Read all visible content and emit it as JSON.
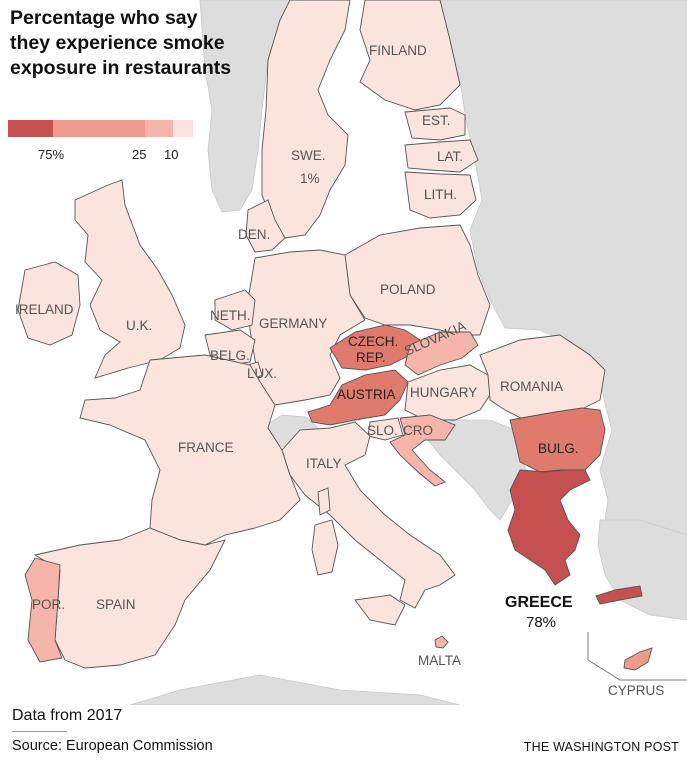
{
  "title": "Percentage who say they experience smoke exposure in restaurants",
  "legend": {
    "colors": [
      "#c6504f",
      "#ee9b8c",
      "#f5b5aa",
      "#fbe3de"
    ],
    "labels": [
      "75%",
      "25",
      "10"
    ]
  },
  "colors": {
    "land_other": "#dddddd",
    "sea": "#ffffff",
    "level_1": "#fbe3de",
    "level_2": "#f5b5aa",
    "level_3": "#ee9b8c",
    "level_4": "#e07a6c",
    "level_5": "#c6504f"
  },
  "countries": {
    "finland": "FINLAND",
    "sweden": "SWE.",
    "sweden_value": "1%",
    "estonia": "EST.",
    "latvia": "LAT.",
    "lithuania": "LITH.",
    "denmark": "DEN.",
    "ireland": "IRELAND",
    "uk": "U.K.",
    "netherlands": "NETH.",
    "germany": "GERMANY",
    "poland": "POLAND",
    "belgium": "BELG.",
    "luxembourg": "LUX.",
    "czech_line1": "CZECH.",
    "czech_line2": "REP.",
    "slovakia": "SLOVAKIA",
    "austria": "AUSTRIA",
    "hungary": "HUNGARY",
    "romania": "ROMANIA",
    "france": "FRANCE",
    "slovenia": "SLO.",
    "croatia": "CRO",
    "bulgaria": "BULG.",
    "italy": "ITALY",
    "greece": "GREECE",
    "greece_value": "78%",
    "portugal": "POR.",
    "spain": "SPAIN",
    "malta": "MALTA",
    "cyprus": "CYPRUS"
  },
  "footer": {
    "note": "Data from 2017",
    "source": "Source: European Commission",
    "credit": "THE WASHINGTON POST"
  }
}
